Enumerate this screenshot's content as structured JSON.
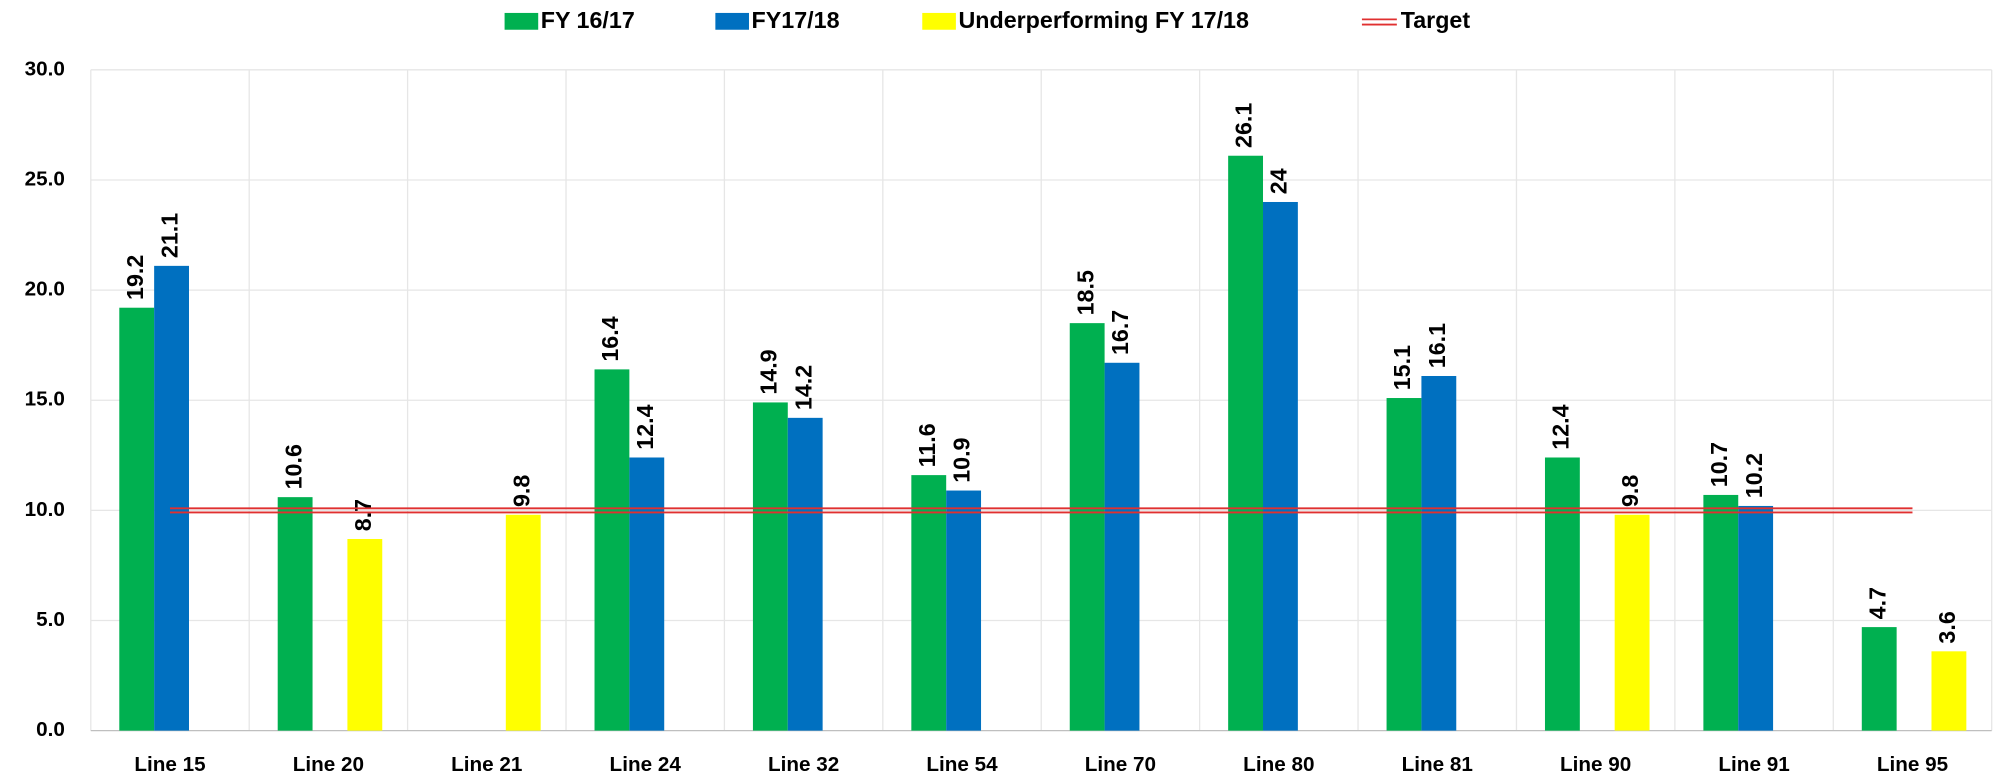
{
  "chart_data": {
    "type": "bar",
    "categories": [
      "Line 15",
      "Line 20",
      "Line 21",
      "Line 24",
      "Line 32",
      "Line 54",
      "Line 70",
      "Line 80",
      "Line 81",
      "Line 90",
      "Line 91",
      "Line 95"
    ],
    "series": [
      {
        "name": "FY 16/17",
        "color": "#00b050",
        "values": [
          19.2,
          10.6,
          null,
          16.4,
          14.9,
          11.6,
          18.5,
          26.1,
          15.1,
          12.4,
          10.7,
          4.7
        ]
      },
      {
        "name": "FY17/18",
        "color": "#0070c0",
        "values": [
          21.1,
          null,
          null,
          12.4,
          14.2,
          10.9,
          16.7,
          24,
          16.1,
          null,
          10.2,
          null
        ]
      },
      {
        "name": "Underperforming FY 17/18",
        "color": "#ffff00",
        "values": [
          null,
          8.7,
          9.8,
          null,
          null,
          null,
          null,
          null,
          null,
          9.8,
          null,
          3.6
        ]
      }
    ],
    "target": {
      "name": "Target",
      "value": 10,
      "color": "#e03030"
    },
    "ylim": [
      0,
      30
    ],
    "yticks": [
      {
        "value": 0,
        "label": "0.0"
      },
      {
        "value": 5,
        "label": "5.0"
      },
      {
        "value": 10,
        "label": "10.0"
      },
      {
        "value": 15,
        "label": "15.0"
      },
      {
        "value": 20,
        "label": "20.0"
      },
      {
        "value": 25,
        "label": "25.0"
      },
      {
        "value": 30,
        "label": "30.0"
      }
    ],
    "grid": true,
    "legend": "top"
  }
}
